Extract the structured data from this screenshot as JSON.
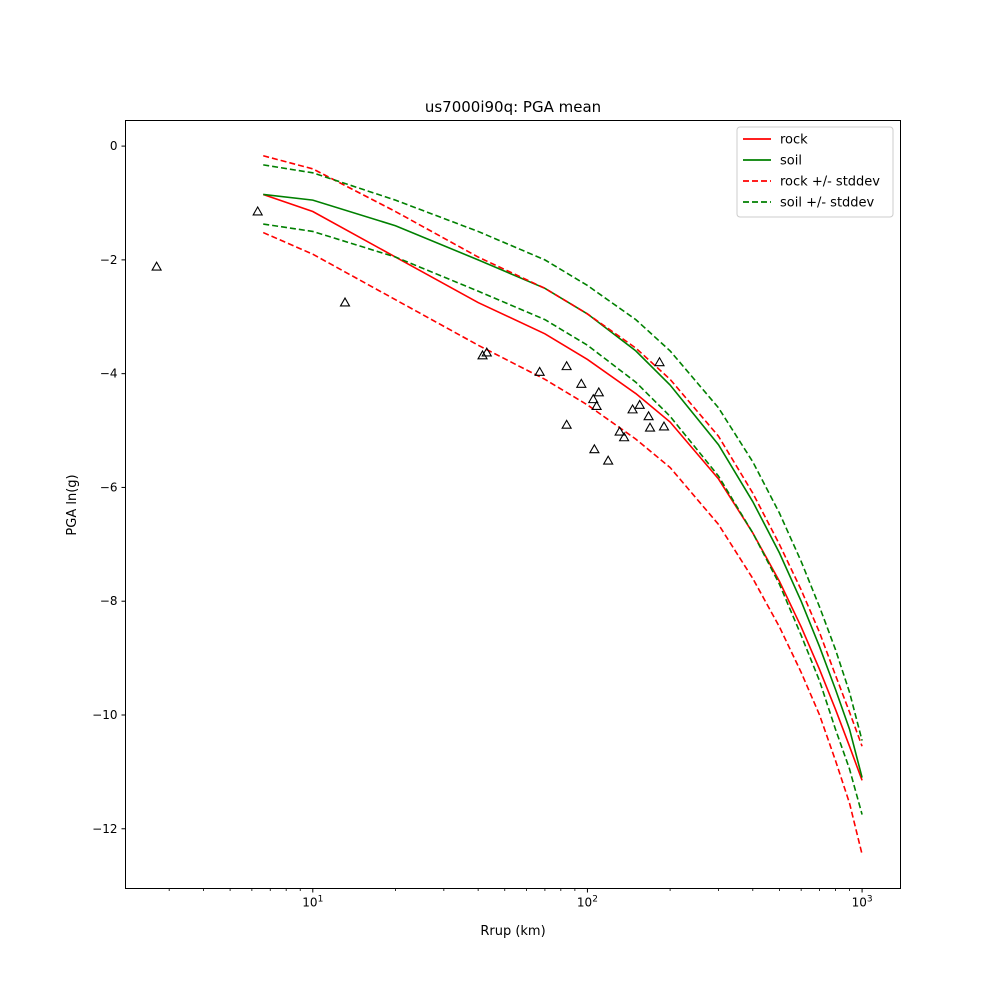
{
  "chart_data": {
    "type": "line",
    "title": "us7000i90q: PGA mean",
    "xlabel": "Rrup (km)",
    "ylabel": "PGA ln(g)",
    "xscale": "log",
    "xlim": [
      2.08,
      1380
    ],
    "ylim": [
      -13.05,
      0.45
    ],
    "grid": false,
    "legend_position": "top-right",
    "x_ticks": [
      {
        "value": 10,
        "base": "10",
        "exp": "1"
      },
      {
        "value": 100,
        "base": "10",
        "exp": "2"
      },
      {
        "value": 1000,
        "base": "10",
        "exp": "3"
      }
    ],
    "y_ticks": [
      {
        "value": 0,
        "label": "0"
      },
      {
        "value": -2,
        "label": "−2"
      },
      {
        "value": -4,
        "label": "−4"
      },
      {
        "value": -6,
        "label": "−6"
      },
      {
        "value": -8,
        "label": "−8"
      },
      {
        "value": -10,
        "label": "−10"
      },
      {
        "value": -12,
        "label": "−12"
      }
    ],
    "x": [
      6.6,
      10,
      20,
      40,
      70,
      100,
      150,
      200,
      300,
      400,
      500,
      600,
      700,
      800,
      900,
      1000
    ],
    "series": [
      {
        "name": "rock",
        "color": "#ff0000",
        "dash": false,
        "legend": true,
        "values": [
          -0.85,
          -1.15,
          -1.95,
          -2.75,
          -3.3,
          -3.75,
          -4.35,
          -4.85,
          -5.85,
          -6.8,
          -7.65,
          -8.45,
          -9.2,
          -9.9,
          -10.55,
          -11.15
        ]
      },
      {
        "name": "soil",
        "color": "#008000",
        "dash": false,
        "legend": true,
        "values": [
          -0.85,
          -0.95,
          -1.4,
          -2.0,
          -2.5,
          -2.95,
          -3.6,
          -4.2,
          -5.25,
          -6.25,
          -7.15,
          -8.0,
          -8.8,
          -9.55,
          -10.25,
          -11.1
        ]
      },
      {
        "name": "rock +/- stddev",
        "color": "#ff0000",
        "dash": true,
        "legend": true,
        "values": [
          -0.17,
          -0.4,
          -1.15,
          -1.95,
          -2.5,
          -2.95,
          -3.55,
          -4.1,
          -5.1,
          -6.1,
          -7.0,
          -7.8,
          -8.55,
          -9.3,
          -9.95,
          -10.55
        ]
      },
      {
        "name": "rock - stddev",
        "color": "#ff0000",
        "dash": true,
        "legend": false,
        "values": [
          -1.52,
          -1.9,
          -2.7,
          -3.5,
          -4.1,
          -4.55,
          -5.15,
          -5.65,
          -6.65,
          -7.6,
          -8.45,
          -9.25,
          -10.0,
          -10.8,
          -11.55,
          -12.45
        ]
      },
      {
        "name": "soil +/- stddev",
        "color": "#008000",
        "dash": true,
        "legend": true,
        "values": [
          -0.33,
          -0.47,
          -0.95,
          -1.5,
          -2.0,
          -2.45,
          -3.05,
          -3.6,
          -4.6,
          -5.55,
          -6.45,
          -7.3,
          -8.1,
          -8.85,
          -9.6,
          -10.45
        ]
      },
      {
        "name": "soil - stddev",
        "color": "#008000",
        "dash": true,
        "legend": false,
        "values": [
          -1.37,
          -1.5,
          -1.95,
          -2.55,
          -3.05,
          -3.5,
          -4.15,
          -4.75,
          -5.8,
          -6.8,
          -7.7,
          -8.6,
          -9.4,
          -10.25,
          -10.95,
          -11.75
        ]
      }
    ],
    "observations": {
      "marker": "triangle",
      "points": [
        {
          "x": 2.7,
          "y": -2.12
        },
        {
          "x": 6.3,
          "y": -1.15
        },
        {
          "x": 13.1,
          "y": -2.75
        },
        {
          "x": 41.5,
          "y": -3.68
        },
        {
          "x": 43.0,
          "y": -3.63
        },
        {
          "x": 67,
          "y": -3.97
        },
        {
          "x": 84,
          "y": -3.87
        },
        {
          "x": 84,
          "y": -4.9
        },
        {
          "x": 95,
          "y": -4.18
        },
        {
          "x": 105,
          "y": -4.45
        },
        {
          "x": 106,
          "y": -5.33
        },
        {
          "x": 108,
          "y": -4.57
        },
        {
          "x": 110,
          "y": -4.33
        },
        {
          "x": 119,
          "y": -5.53
        },
        {
          "x": 131,
          "y": -5.02
        },
        {
          "x": 136,
          "y": -5.12
        },
        {
          "x": 146,
          "y": -4.63
        },
        {
          "x": 155,
          "y": -4.55
        },
        {
          "x": 167,
          "y": -4.75
        },
        {
          "x": 169,
          "y": -4.95
        },
        {
          "x": 183,
          "y": -3.8
        },
        {
          "x": 190,
          "y": -4.93
        }
      ]
    }
  }
}
